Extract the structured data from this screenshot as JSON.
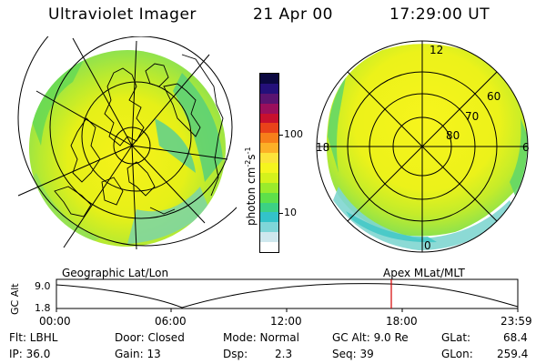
{
  "header": {
    "title": "Ultraviolet Imager",
    "date": "21 Apr 00",
    "time": "17:29:00 UT"
  },
  "colorbar": {
    "label": "photon cm",
    "label_sup1": "-2",
    "label_mid": "s",
    "label_sup2": "-1",
    "tick_100": "100",
    "tick_10": "10",
    "colors": [
      "#ffffff",
      "#cfe8ee",
      "#7fd6d8",
      "#33c3c9",
      "#3cd184",
      "#5ee04a",
      "#9aeb2c",
      "#d4f21c",
      "#f5f51e",
      "#fce33a",
      "#fcb027",
      "#f77f1a",
      "#e9421a",
      "#c8102e",
      "#9a0f5c",
      "#5a1470",
      "#24107a",
      "#0b0840"
    ]
  },
  "left_map": {
    "caption": "Geographic Lat/Lon"
  },
  "right_map": {
    "caption": "Apex MLat/MLT",
    "mlt_12": "12",
    "mlt_18": "18",
    "mlt_6": "6",
    "mlt_0": "0",
    "lat_60": "60",
    "lat_70": "70",
    "lat_80": "80"
  },
  "altitude_plot": {
    "ylabel": "GC Alt",
    "y_top": "9.0",
    "y_bottom": "1.8",
    "x_ticks": [
      "00:00",
      "06:00",
      "12:00",
      "18:00",
      "23:59"
    ]
  },
  "info": {
    "flt": "Flt: LBHL",
    "ip": "IP: 36.0",
    "door": "Door: Closed",
    "gain": "Gain: 13",
    "mode": "Mode: Normal",
    "dsp_label": "Dsp:",
    "dsp_value": "2.3",
    "gc_alt": "GC Alt: 9.0 Re",
    "seq": "Seq: 39",
    "glat_label": "GLat:",
    "glat_value": "68.4",
    "glon_label": "GLon:",
    "glon_value": "259.4"
  }
}
